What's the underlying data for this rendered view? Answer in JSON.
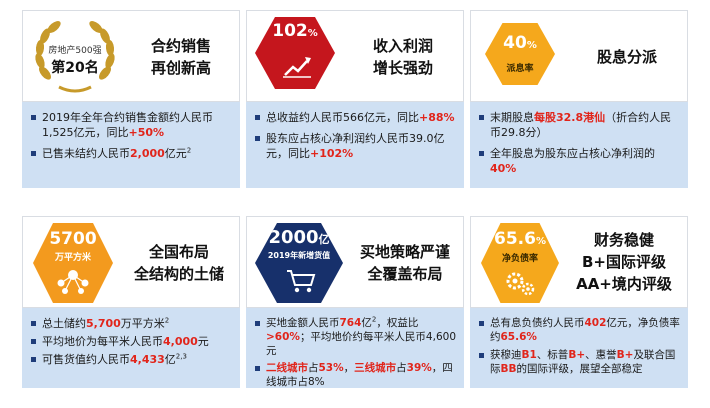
{
  "cards": {
    "sales": {
      "badge_line1": "房地产500强",
      "badge_line2": "第20名",
      "title_line1": "合约销售",
      "title_line2": "再创新高",
      "b1_text": "2019年全年合约销售金额约人民币1,525亿元，同比",
      "b1_highlight": "+50%",
      "b2_text": "已售未结约人民币",
      "b2_highlight": "2,000",
      "b2_suffix": "亿元",
      "b2_sup": "2"
    },
    "profit": {
      "badge_value": "102",
      "badge_unit": "%",
      "title_line1": "收入利润",
      "title_line2": "增长强劲",
      "b1_text": "总收益约人民币566亿元，同比",
      "b1_highlight": "+88%",
      "b2_text": "股东应占核心净利润约人民币39.0亿元，同比",
      "b2_highlight": "+102%"
    },
    "dividend": {
      "badge_value": "40",
      "badge_unit": "%",
      "badge_label": "派息率",
      "title": "股息分派",
      "b1_text": "末期股息",
      "b1_highlight": "每股32.8港仙",
      "b1_suffix": "（折合约人民币29.8分）",
      "b2_text": "全年股息为股东应占核心净利润的",
      "b2_highlight": "40%"
    },
    "landbank": {
      "badge_value": "5700",
      "badge_label": "万平方米",
      "title_line1": "全国布局",
      "title_line2": "全结构的土储",
      "b1_text": "总土储约",
      "b1_highlight": "5,700",
      "b1_suffix": "万平方米",
      "b1_sup": "2",
      "b2_text": "平均地价为每平米人民币",
      "b2_highlight": "4,000",
      "b2_suffix": "元",
      "b3_text": "可售货值约人民币",
      "b3_highlight": "4,433",
      "b3_suffix": "亿",
      "b3_sup": "2,3"
    },
    "acquisition": {
      "badge_value": "2000",
      "badge_unit": "亿",
      "badge_label": "2019年新增货值",
      "title_line1": "买地策略严谨",
      "title_line2": "全覆盖布局",
      "b1_text": "买地金额人民币",
      "b1_highlight": "764",
      "b1_suffix": "亿",
      "b1_sup": "2",
      "b1_text2": "，权益比",
      "b1_highlight2": ">60%",
      "b1_text3": "；平均地价约每平米人民币4,600元",
      "b2_highlight": "二线城市",
      "b2_text": "占",
      "b2_highlight2": "53%",
      "b2_text2": "，",
      "b2_highlight3": "三线城市",
      "b2_text3": "占",
      "b2_highlight4": "39%",
      "b2_text4": "，四线城市占8%"
    },
    "finance": {
      "badge_value": "65.6",
      "badge_unit": "%",
      "badge_label": "净负债率",
      "title_line1": "财务稳健",
      "title_line2": "B+国际评级",
      "title_line3": "AA+境内评级",
      "b1_text": "总有息负债约人民币",
      "b1_highlight": "402",
      "b1_suffix": "亿元，净负债率约",
      "b1_highlight2": "65.6%",
      "b2_text": "获穆迪",
      "b2_highlight": "B1",
      "b2_text2": "、标普",
      "b2_highlight2": "B+",
      "b2_text3": "、惠誉",
      "b2_highlight3": "B+",
      "b2_text4": "及联合国际",
      "b2_highlight4": "BB",
      "b2_text5": "的国际评级，展望全部稳定"
    }
  },
  "colors": {
    "red": "#c5161d",
    "gold": "#f5a81c",
    "orange": "#f39a1e",
    "navy": "#17306b",
    "panel_blue": "#cfe0f3"
  }
}
